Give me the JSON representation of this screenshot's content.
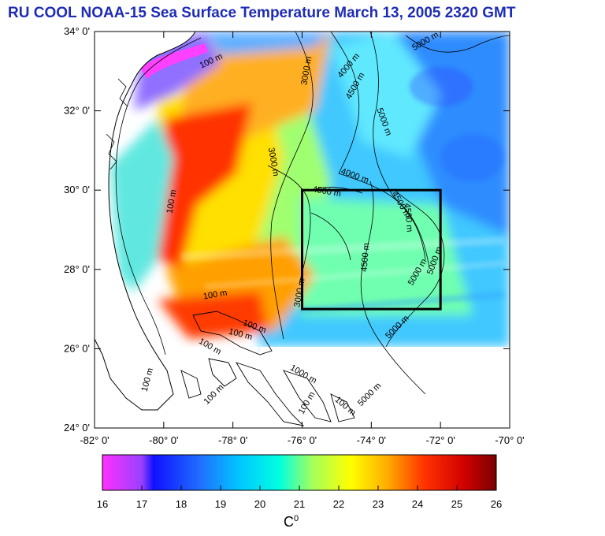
{
  "title": "RU COOL  NOAA-15 Sea Surface Temperature March 13, 2005 2320 GMT",
  "map": {
    "lat_labels": [
      "34° 0'",
      "32° 0'",
      "30° 0'",
      "28° 0'",
      "26° 0'",
      "24° 0'"
    ],
    "lon_labels": [
      "-82° 0'",
      "-80° 0'",
      "-78° 0'",
      "-76° 0'",
      "-74° 0'",
      "-72° 0'",
      "-70° 0'"
    ],
    "lon_range": [
      -82,
      -70
    ],
    "lat_range": [
      24,
      34
    ],
    "study_box": {
      "lon": [
        -76,
        -72
      ],
      "lat": [
        27,
        30
      ]
    },
    "contour_labels": [
      {
        "text": "100 m",
        "lon": -78.6,
        "lat": 33.2,
        "angle": -25
      },
      {
        "text": "3000 m",
        "lon": -75.8,
        "lat": 33.0,
        "angle": -80
      },
      {
        "text": "4000 m",
        "lon": -74.6,
        "lat": 33.1,
        "angle": -50
      },
      {
        "text": "4500 m",
        "lon": -74.4,
        "lat": 32.6,
        "angle": -60
      },
      {
        "text": "5000 m",
        "lon": -72.4,
        "lat": 33.7,
        "angle": -30
      },
      {
        "text": "5000 m",
        "lon": -73.7,
        "lat": 31.7,
        "angle": 70
      },
      {
        "text": "3000 m",
        "lon": -76.9,
        "lat": 30.7,
        "angle": 80
      },
      {
        "text": "100 m",
        "lon": -79.7,
        "lat": 29.7,
        "angle": -80
      },
      {
        "text": "4000 m",
        "lon": -74.5,
        "lat": 30.3,
        "angle": 20
      },
      {
        "text": "4500 m",
        "lon": -75.3,
        "lat": 29.9,
        "angle": 10
      },
      {
        "text": "4500 m",
        "lon": -73.2,
        "lat": 29.6,
        "angle": 60
      },
      {
        "text": "4500 m",
        "lon": -73.0,
        "lat": 29.3,
        "angle": 85
      },
      {
        "text": "4500 m",
        "lon": -74.1,
        "lat": 28.3,
        "angle": -85
      },
      {
        "text": "5000 m",
        "lon": -72.6,
        "lat": 27.9,
        "angle": -60
      },
      {
        "text": "5000 m",
        "lon": -72.1,
        "lat": 28.2,
        "angle": -70
      },
      {
        "text": "3000 m",
        "lon": -76.0,
        "lat": 27.4,
        "angle": -80
      },
      {
        "text": "100 m",
        "lon": -78.5,
        "lat": 27.3,
        "angle": -10
      },
      {
        "text": "100 m",
        "lon": -77.4,
        "lat": 26.5,
        "angle": 20
      },
      {
        "text": "100 m",
        "lon": -78.7,
        "lat": 26.0,
        "angle": 30
      },
      {
        "text": "100 m",
        "lon": -77.8,
        "lat": 26.3,
        "angle": 15
      },
      {
        "text": "5000 m",
        "lon": -73.2,
        "lat": 26.5,
        "angle": -45
      },
      {
        "text": "100 m",
        "lon": -80.4,
        "lat": 25.2,
        "angle": -75
      },
      {
        "text": "100 m",
        "lon": -78.5,
        "lat": 24.8,
        "angle": -45
      },
      {
        "text": "1000 m",
        "lon": -76.0,
        "lat": 25.3,
        "angle": 30
      },
      {
        "text": "100 m",
        "lon": -75.8,
        "lat": 24.6,
        "angle": -60
      },
      {
        "text": "100 m",
        "lon": -74.8,
        "lat": 24.5,
        "angle": 40
      },
      {
        "text": "5000 m",
        "lon": -74.0,
        "lat": 24.8,
        "angle": -45
      }
    ]
  },
  "colorbar": {
    "ticks": [
      "16",
      "17",
      "18",
      "19",
      "20",
      "21",
      "22",
      "23",
      "24",
      "25",
      "26"
    ],
    "range": [
      16,
      26
    ],
    "unit": "C",
    "unit_superscript": "0",
    "stops": [
      {
        "value": 16,
        "color": "#ff30ff"
      },
      {
        "value": 17,
        "color": "#9a40ff"
      },
      {
        "value": 17.3,
        "color": "#1010ff"
      },
      {
        "value": 18.5,
        "color": "#2070ff"
      },
      {
        "value": 19.5,
        "color": "#00c8ff"
      },
      {
        "value": 20.5,
        "color": "#00ffe0"
      },
      {
        "value": 21.3,
        "color": "#a0ff60"
      },
      {
        "value": 22.3,
        "color": "#ffff00"
      },
      {
        "value": 23.2,
        "color": "#ffb000"
      },
      {
        "value": 24.2,
        "color": "#ff3000"
      },
      {
        "value": 25.2,
        "color": "#d00000"
      },
      {
        "value": 26,
        "color": "#7a0000"
      }
    ]
  }
}
